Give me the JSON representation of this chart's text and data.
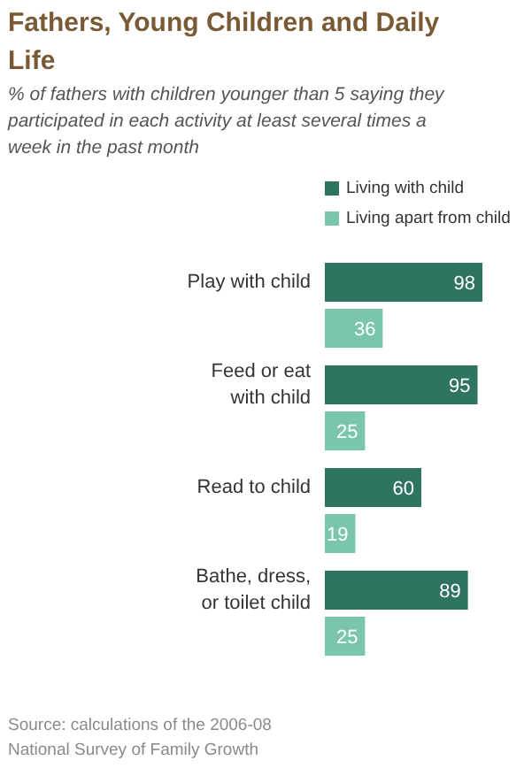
{
  "chart_data": {
    "type": "bar",
    "orientation": "horizontal",
    "title": "Fathers, Young Children and Daily\nLife",
    "subtitle": "% of fathers with children younger than 5 saying they\nparticipated in each activity at least several times a\nweek in the past month",
    "categories": [
      "Play with child",
      "Feed or eat\nwith child",
      "Read to child",
      "Bathe, dress,\nor toilet child"
    ],
    "series": [
      {
        "name": "Living with child",
        "color": "#2e7460",
        "values": [
          98,
          95,
          60,
          89
        ]
      },
      {
        "name": "Living apart from child",
        "color": "#7ac5ae",
        "values": [
          36,
          25,
          19,
          25
        ]
      }
    ],
    "data_labels": true,
    "legend": "top right",
    "grid": false,
    "annotations": [
      "Source: calculations of the 2006-08\nNational Survey of Family Growth"
    ]
  }
}
